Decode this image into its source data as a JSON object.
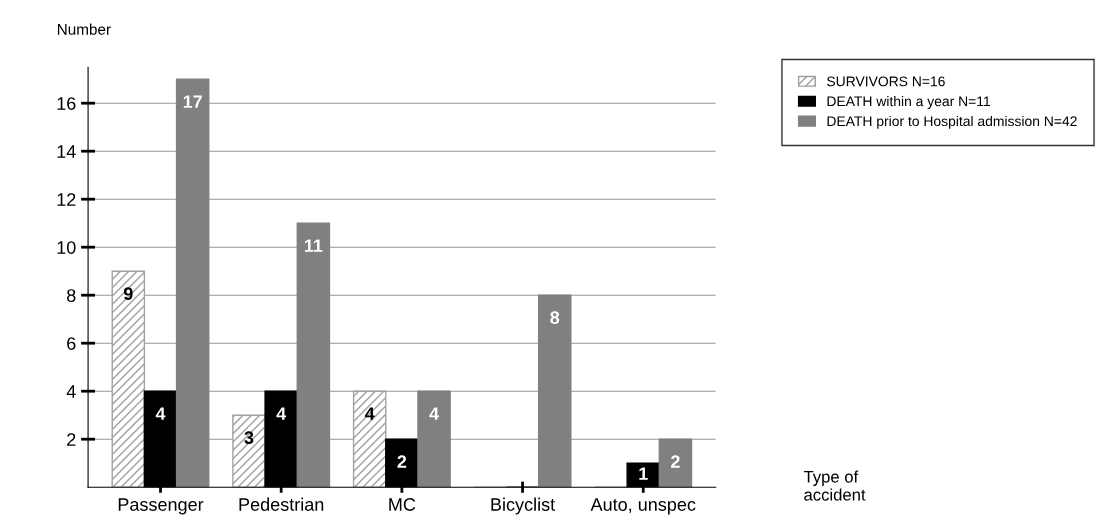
{
  "chart_data": {
    "type": "bar",
    "ylabel": "Number",
    "annotations": [
      "Type of\naccident"
    ],
    "categories": [
      "Passenger",
      "Pedestrian",
      "MC",
      "Bicyclist",
      "Auto, unspec"
    ],
    "series": [
      {
        "name": "SURVIVORS N=16",
        "color": "#a0a0a0",
        "values": [
          9,
          3,
          4,
          0,
          0
        ],
        "value_labels": [
          "9",
          "3",
          "4",
          null,
          null
        ]
      },
      {
        "name": "DEATH within a year N=11",
        "color": "#000000",
        "values": [
          4,
          4,
          2,
          0,
          1
        ],
        "value_labels": [
          "4",
          "4",
          "2",
          null,
          "1"
        ]
      },
      {
        "name": "DEATH prior to Hospital admission N=42",
        "color": "#808080",
        "values": [
          17,
          11,
          4,
          8,
          2
        ],
        "value_labels": [
          "17",
          "11",
          "4",
          "8",
          "2"
        ]
      }
    ],
    "ylim": [
      0,
      17.5
    ],
    "yticks": [
      2,
      4,
      6,
      8,
      10,
      12,
      14,
      16
    ],
    "grid": "y",
    "legend": "top right"
  }
}
